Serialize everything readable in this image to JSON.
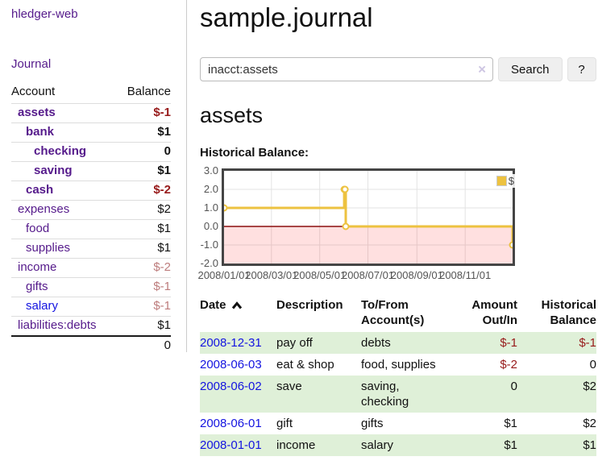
{
  "app": {
    "title": "hledger-web"
  },
  "colors": {
    "link_visited": "#551A8B",
    "link_unvisited": "#1414e0",
    "negative": "#971a1a",
    "negative_muted": "#bd7c7c",
    "row_stripe_green": "#dff0d8",
    "chart_series_gold": "#edc240",
    "chart_negative_fill": "rgba(255,0,0,0.12)",
    "chart_zero_line": "#8b0f0f",
    "chart_grid": "#e3e3e3"
  },
  "sidebar": {
    "journal_label": "Journal",
    "accounts": {
      "headers": [
        "Account",
        "Balance"
      ],
      "rows": [
        {
          "name": "assets",
          "indent": 1,
          "bold": true,
          "link": "visited",
          "balance": "$-1",
          "tone": "negative"
        },
        {
          "name": "bank",
          "indent": 2,
          "bold": true,
          "link": "visited",
          "balance": "$1",
          "tone": "normal"
        },
        {
          "name": "checking",
          "indent": 3,
          "bold": true,
          "link": "visited",
          "balance": "0",
          "tone": "normal"
        },
        {
          "name": "saving",
          "indent": 3,
          "bold": true,
          "link": "visited",
          "balance": "$1",
          "tone": "normal"
        },
        {
          "name": "cash",
          "indent": 2,
          "bold": true,
          "link": "visited",
          "balance": "$-2",
          "tone": "negative"
        },
        {
          "name": "expenses",
          "indent": 1,
          "bold": false,
          "link": "visited",
          "balance": "$2",
          "tone": "normal"
        },
        {
          "name": "food",
          "indent": 2,
          "bold": false,
          "link": "visited",
          "balance": "$1",
          "tone": "normal"
        },
        {
          "name": "supplies",
          "indent": 2,
          "bold": false,
          "link": "visited",
          "balance": "$1",
          "tone": "normal"
        },
        {
          "name": "income",
          "indent": 1,
          "bold": false,
          "link": "visited",
          "balance": "$-2",
          "tone": "muted"
        },
        {
          "name": "gifts",
          "indent": 2,
          "bold": false,
          "link": "visited",
          "balance": "$-1",
          "tone": "muted"
        },
        {
          "name": "salary",
          "indent": 2,
          "bold": false,
          "link": "unvisited",
          "balance": "$-1",
          "tone": "muted"
        },
        {
          "name": "liabilities:debts",
          "indent": 1,
          "bold": false,
          "link": "visited",
          "balance": "$1",
          "tone": "normal"
        }
      ],
      "total": "0"
    }
  },
  "main": {
    "title": "sample.journal",
    "search": {
      "value": "inacct:assets",
      "clear_icon": "×",
      "button_label": "Search",
      "help_label": "?"
    },
    "account_heading": "assets",
    "chart_data": {
      "type": "line",
      "title": "Historical Balance:",
      "step": true,
      "series": [
        {
          "name": "$",
          "color": "#edc240",
          "points": [
            [
              "2008/01/01",
              1
            ],
            [
              "2008/06/01",
              2
            ],
            [
              "2008/06/02",
              2
            ],
            [
              "2008/06/03",
              0
            ],
            [
              "2008/12/31",
              -1
            ]
          ]
        }
      ],
      "xlim": [
        "2008/01/01",
        "2008/12/31"
      ],
      "ylim": [
        -2,
        3
      ],
      "yticks": [
        "3.0",
        "2.0",
        "1.0",
        "0.0",
        "-1.0",
        "-2.0"
      ],
      "xticks": [
        "2008/01/01",
        "2008/03/01",
        "2008/05/01",
        "2008/07/01",
        "2008/09/01",
        "2008/11/01"
      ],
      "legend": {
        "position": "top-right",
        "entries": [
          {
            "label": "$",
            "color": "#edc240"
          }
        ]
      },
      "grid": true,
      "negative_region_shaded": true
    },
    "register": {
      "headers": [
        {
          "lines": [
            "Date"
          ],
          "align": "left",
          "sorted": "asc"
        },
        {
          "lines": [
            "Description"
          ],
          "align": "left"
        },
        {
          "lines": [
            "To/From",
            "Account(s)"
          ],
          "align": "left"
        },
        {
          "lines": [
            "Amount",
            "Out/In"
          ],
          "align": "right"
        },
        {
          "lines": [
            "Historical",
            "Balance"
          ],
          "align": "right"
        }
      ],
      "rows": [
        {
          "date": "2008-12-31",
          "description": "pay off",
          "accounts": "debts",
          "amount": "$-1",
          "amount_tone": "negative",
          "balance": "$-1",
          "balance_tone": "negative"
        },
        {
          "date": "2008-06-03",
          "description": "eat & shop",
          "accounts": "food, supplies",
          "amount": "$-2",
          "amount_tone": "negative",
          "balance": "0",
          "balance_tone": "normal"
        },
        {
          "date": "2008-06-02",
          "description": "save",
          "accounts": "saving,\nchecking",
          "amount": "0",
          "amount_tone": "normal",
          "balance": "$2",
          "balance_tone": "normal"
        },
        {
          "date": "2008-06-01",
          "description": "gift",
          "accounts": "gifts",
          "amount": "$1",
          "amount_tone": "normal",
          "balance": "$2",
          "balance_tone": "normal"
        },
        {
          "date": "2008-01-01",
          "description": "income",
          "accounts": "salary",
          "amount": "$1",
          "amount_tone": "normal",
          "balance": "$1",
          "balance_tone": "normal"
        }
      ]
    }
  }
}
